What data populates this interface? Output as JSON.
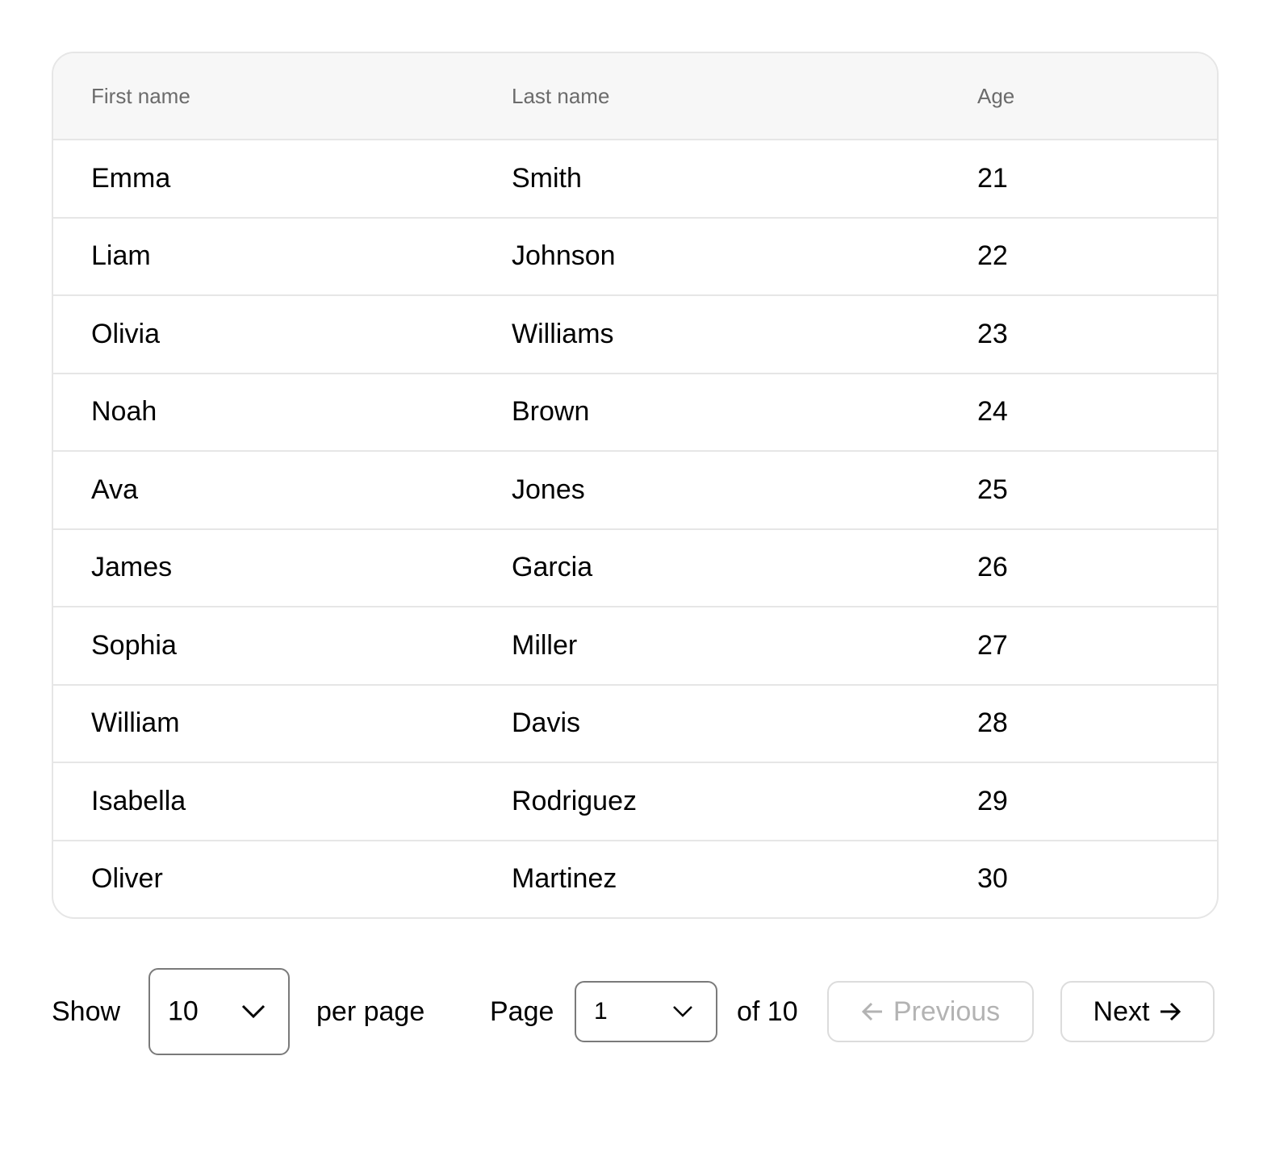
{
  "table": {
    "columns": [
      "First name",
      "Last name",
      "Age"
    ],
    "rows": [
      [
        "Emma",
        "Smith",
        "21"
      ],
      [
        "Liam",
        "Johnson",
        "22"
      ],
      [
        "Olivia",
        "Williams",
        "23"
      ],
      [
        "Noah",
        "Brown",
        "24"
      ],
      [
        "Ava",
        "Jones",
        "25"
      ],
      [
        "James",
        "Garcia",
        "26"
      ],
      [
        "Sophia",
        "Miller",
        "27"
      ],
      [
        "William",
        "Davis",
        "28"
      ],
      [
        "Isabella",
        "Rodriguez",
        "29"
      ],
      [
        "Oliver",
        "Martinez",
        "30"
      ]
    ]
  },
  "pagination": {
    "show_label": "Show",
    "page_size": "10",
    "per_page_label": "per page",
    "page_label": "Page",
    "current_page": "1",
    "of_total": "of 10",
    "previous_label": "Previous",
    "previous_disabled": true,
    "next_label": "Next"
  }
}
